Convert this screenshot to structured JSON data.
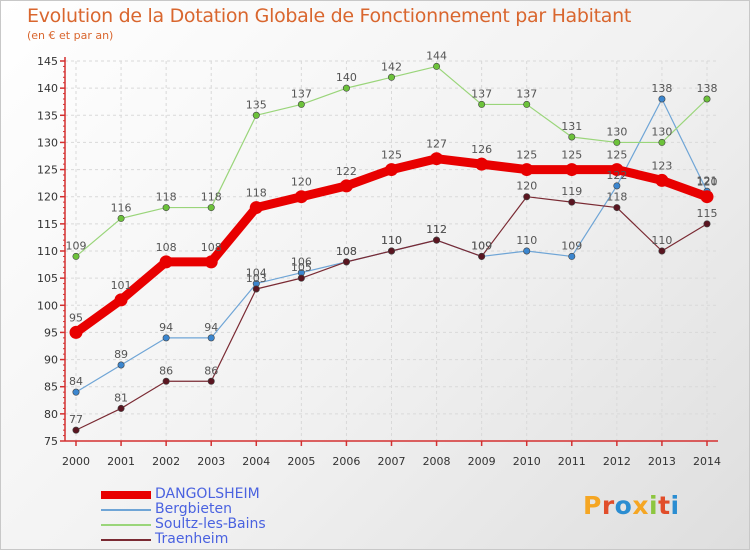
{
  "title": "Evolution de la Dotation Globale de Fonctionnement par Habitant",
  "subtitle": "(en € et par an)",
  "logo_text": "Proxiti",
  "colors": {
    "title": "#d9662e",
    "legend_text": "#4a62e0",
    "axis": "#d43030",
    "grid": "#d9d9d9",
    "label": "#555555",
    "logo": [
      "#f5a623",
      "#e14d2a",
      "#2b8dd1",
      "#f5a623",
      "#8dc63f",
      "#e14d2a",
      "#2b8dd1"
    ]
  },
  "chart_data": {
    "type": "line",
    "title": "Evolution de la Dotation Globale de Fonctionnement par Habitant",
    "subtitle": "(en € et par an)",
    "x": [
      "2000",
      "2001",
      "2002",
      "2003",
      "2004",
      "2005",
      "2006",
      "2007",
      "2008",
      "2009",
      "2010",
      "2011",
      "2012",
      "2013",
      "2014"
    ],
    "ylim": [
      75,
      145
    ],
    "yticks": [
      75,
      80,
      85,
      90,
      95,
      100,
      105,
      110,
      115,
      120,
      125,
      130,
      135,
      140,
      145
    ],
    "grid": true,
    "legend_position": "bottom-left",
    "series": [
      {
        "name": "DANGOLSHEIM",
        "color": "#e80000",
        "marker": "#e80000",
        "width": 9,
        "values": [
          95,
          101,
          108,
          108,
          118,
          120,
          122,
          125,
          127,
          126,
          125,
          125,
          125,
          123,
          120
        ]
      },
      {
        "name": "Bergbieten",
        "color": "#6fa5d6",
        "marker": "#3b86cf",
        "width": 1.2,
        "values": [
          84,
          89,
          94,
          94,
          104,
          106,
          108,
          110,
          112,
          109,
          110,
          109,
          122,
          138,
          121
        ]
      },
      {
        "name": "Soultz-les-Bains",
        "color": "#9ad57a",
        "marker": "#6cc23a",
        "width": 1.2,
        "values": [
          109,
          116,
          118,
          118,
          135,
          137,
          140,
          142,
          144,
          137,
          137,
          131,
          130,
          130,
          138
        ]
      },
      {
        "name": "Traenheim",
        "color": "#7a2a33",
        "marker": "#5a1520",
        "width": 1.2,
        "values": [
          77,
          81,
          86,
          86,
          103,
          105,
          108,
          110,
          112,
          109,
          120,
          119,
          118,
          110,
          115
        ]
      }
    ]
  }
}
